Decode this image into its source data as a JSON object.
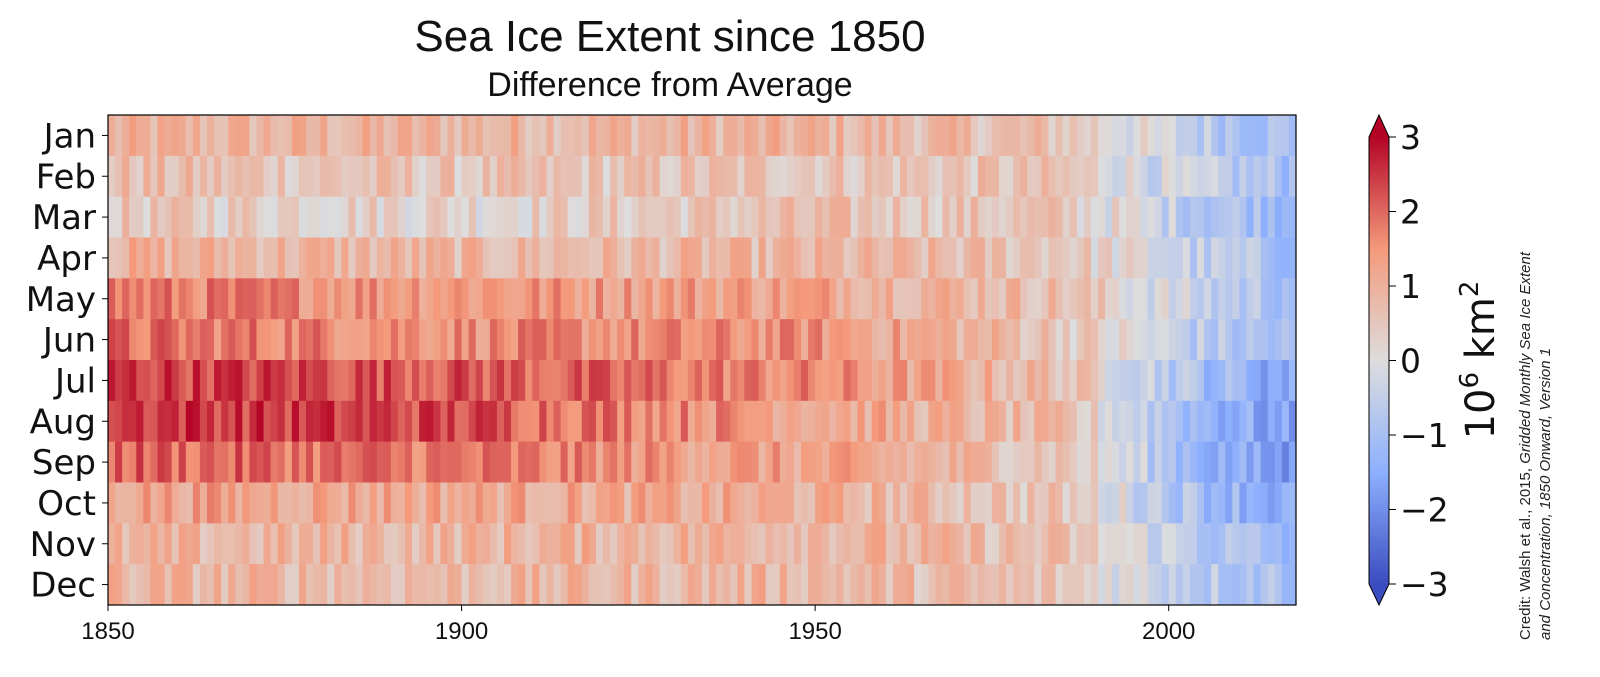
{
  "chart_data": {
    "type": "heatmap",
    "title": "Sea Ice Extent since 1850",
    "subtitle": "Difference from Average",
    "rows": [
      "Jan",
      "Feb",
      "Mar",
      "Apr",
      "May",
      "Jun",
      "Jul",
      "Aug",
      "Sep",
      "Oct",
      "Nov",
      "Dec"
    ],
    "x_range": [
      1850,
      2018
    ],
    "x_ticks": [
      "1850",
      "1900",
      "1950",
      "2000"
    ],
    "row_profiles": [
      {
        "row": "Jan",
        "breakpoints": [
          1850,
          1900,
          1950,
          1985,
          2005,
          2018
        ],
        "values": [
          0.9,
          0.9,
          0.9,
          0.6,
          -0.6,
          -1.0
        ]
      },
      {
        "row": "Feb",
        "breakpoints": [
          1850,
          1900,
          1950,
          1985,
          2005,
          2018
        ],
        "values": [
          0.7,
          0.5,
          0.6,
          0.5,
          -0.6,
          -1.0
        ]
      },
      {
        "row": "Mar",
        "breakpoints": [
          1850,
          1900,
          1950,
          1985,
          2005,
          2018
        ],
        "values": [
          0.5,
          0.3,
          0.6,
          0.5,
          -0.7,
          -1.1
        ]
      },
      {
        "row": "Apr",
        "breakpoints": [
          1850,
          1900,
          1950,
          1985,
          2005,
          2018
        ],
        "values": [
          1.0,
          0.8,
          0.8,
          0.6,
          -0.6,
          -1.0
        ]
      },
      {
        "row": "May",
        "breakpoints": [
          1850,
          1900,
          1950,
          1985,
          2005,
          2018
        ],
        "values": [
          1.8,
          1.5,
          1.3,
          0.7,
          -0.5,
          -0.9
        ]
      },
      {
        "row": "Jun",
        "breakpoints": [
          1850,
          1900,
          1950,
          1985,
          2005,
          2018
        ],
        "values": [
          1.9,
          1.6,
          1.5,
          0.6,
          -0.7,
          -1.1
        ]
      },
      {
        "row": "Jul",
        "breakpoints": [
          1850,
          1900,
          1950,
          1985,
          2005,
          2018
        ],
        "values": [
          2.5,
          2.2,
          1.6,
          0.7,
          -1.0,
          -1.7
        ]
      },
      {
        "row": "Aug",
        "breakpoints": [
          1850,
          1900,
          1950,
          1985,
          2005,
          2018
        ],
        "values": [
          2.6,
          2.3,
          1.3,
          0.6,
          -1.2,
          -1.9
        ]
      },
      {
        "row": "Sep",
        "breakpoints": [
          1850,
          1900,
          1950,
          1985,
          2005,
          2018
        ],
        "values": [
          2.1,
          1.8,
          1.2,
          0.6,
          -1.3,
          -2.0
        ]
      },
      {
        "row": "Oct",
        "breakpoints": [
          1850,
          1900,
          1950,
          1985,
          2005,
          2018
        ],
        "values": [
          1.3,
          1.2,
          1.0,
          0.5,
          -1.0,
          -1.6
        ]
      },
      {
        "row": "Nov",
        "breakpoints": [
          1850,
          1900,
          1950,
          1985,
          2005,
          2018
        ],
        "values": [
          0.8,
          0.9,
          1.0,
          0.6,
          -0.7,
          -1.3
        ]
      },
      {
        "row": "Dec",
        "breakpoints": [
          1850,
          1900,
          1950,
          1985,
          2005,
          2018
        ],
        "values": [
          0.9,
          0.8,
          0.9,
          0.5,
          -0.6,
          -0.9
        ]
      }
    ],
    "colorbar": {
      "min": -3,
      "max": 3,
      "ticks": [
        "3",
        "2",
        "1",
        "0",
        "−1",
        "−2",
        "−3"
      ],
      "label_base": "10",
      "label_exp": "6",
      "label_unit": " km",
      "label_unit_exp": "2",
      "colors": {
        "negative": "#3b4cc0",
        "neutral": "#dddddd",
        "positive": "#b40426"
      }
    },
    "grid": false
  },
  "credit": {
    "line1_plain": "Credit: Walsh et al., 2015, ",
    "line1_italic": "Gridded Monthly Sea Ice Extent",
    "line2_italic": "and Concentration, 1850 Onward, Version 1"
  }
}
